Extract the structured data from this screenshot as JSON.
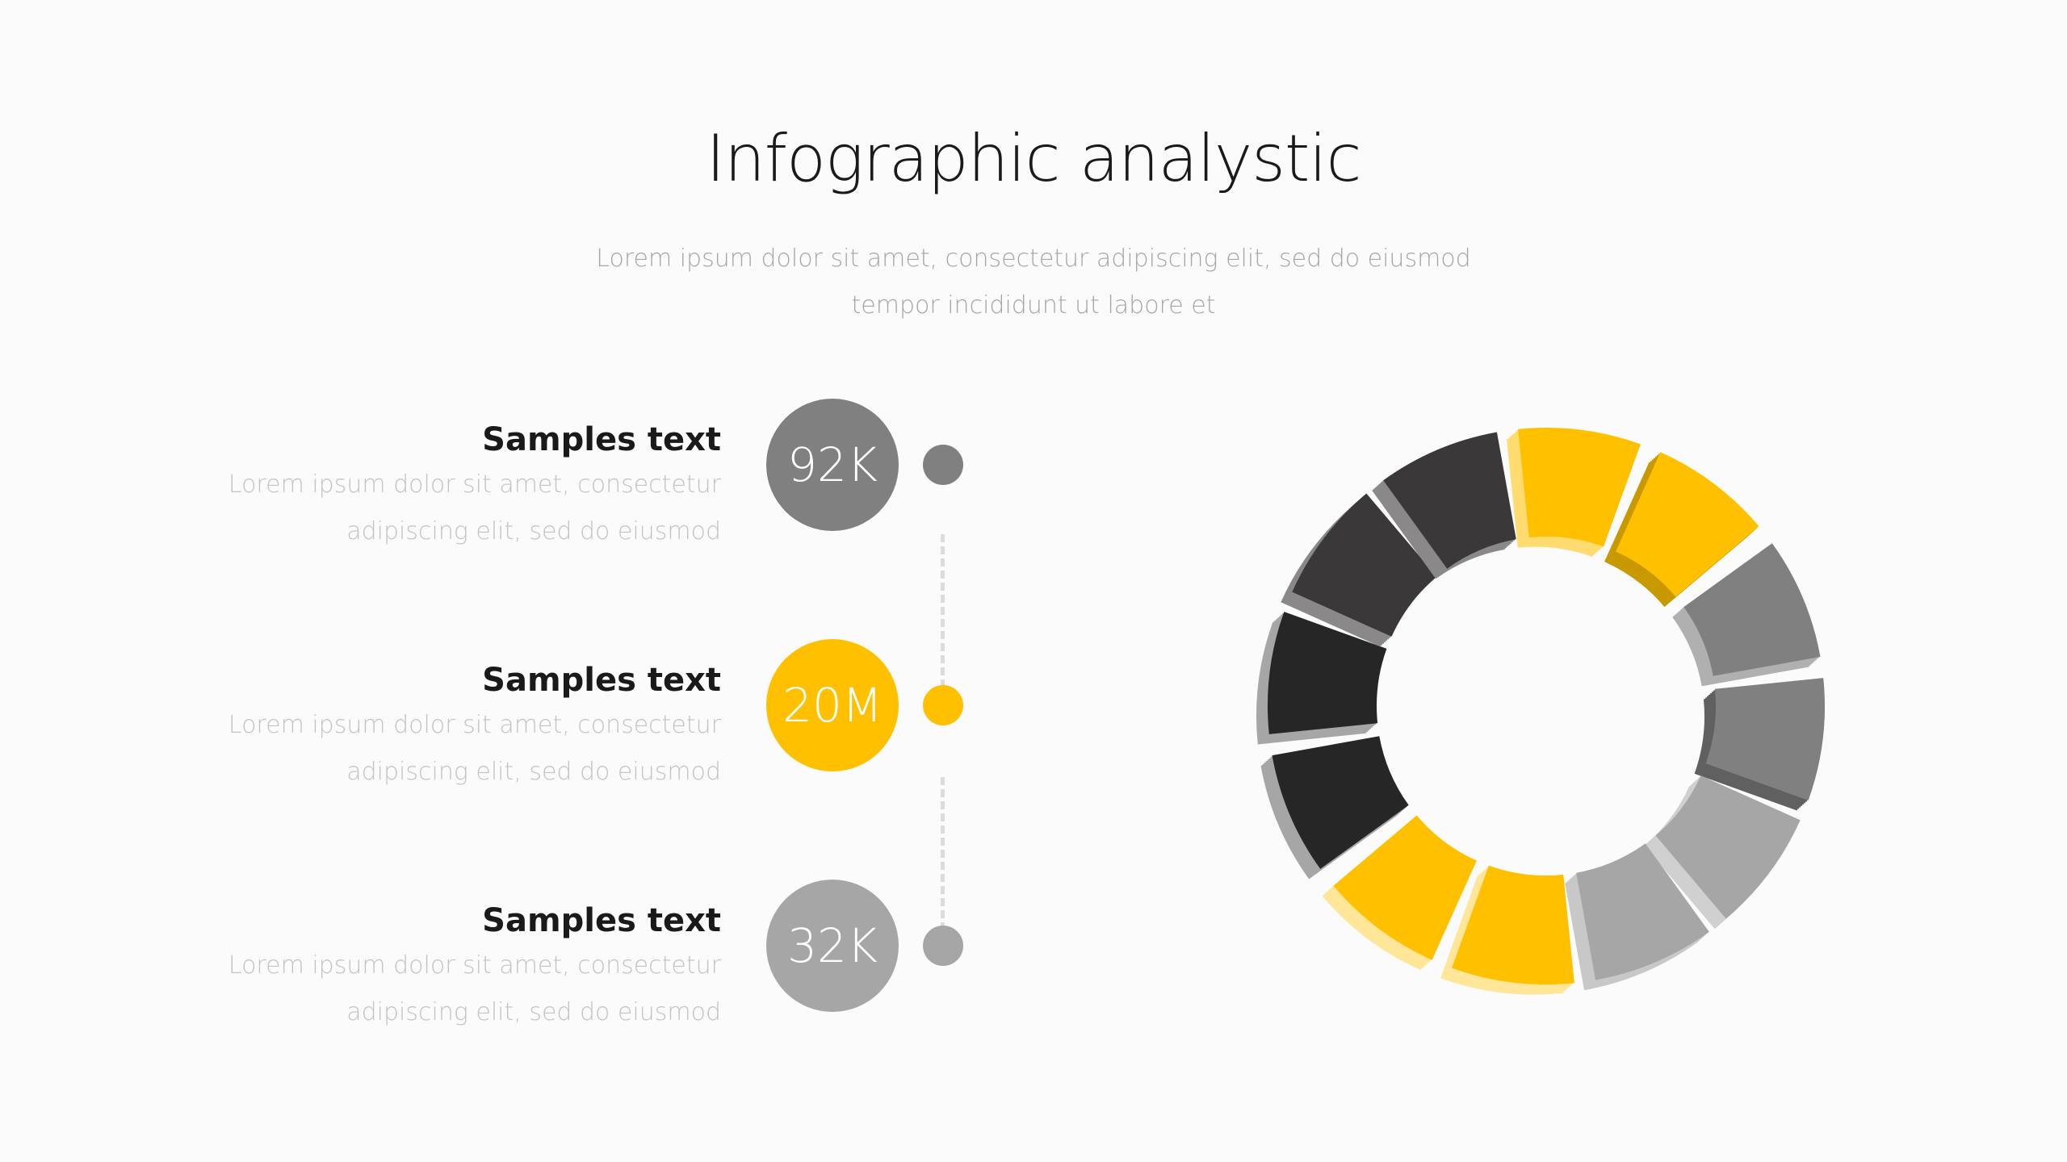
{
  "header": {
    "title": "Infographic analystic",
    "subtitle_line1": "Lorem ipsum dolor sit amet, consectetur adipiscing elit, sed do eiusmod",
    "subtitle_line2": "tempor incididunt ut labore et"
  },
  "items": [
    {
      "heading": "Samples text",
      "line1": "Lorem ipsum dolor sit amet, consectetur",
      "line2": "adipiscing elit, sed do eiusmod",
      "value": "92K",
      "color": "#808080"
    },
    {
      "heading": "Samples text",
      "line1": "Lorem ipsum dolor sit amet, consectetur",
      "line2": "adipiscing elit, sed do eiusmod",
      "value": "20M",
      "color": "#ffc000"
    },
    {
      "heading": "Samples text",
      "line1": "Lorem ipsum dolor sit amet, consectetur",
      "line2": "adipiscing elit, sed do eiusmod",
      "value": "32K",
      "color": "#a6a6a6"
    }
  ],
  "donut": {
    "segment_colors": [
      "#ffc000",
      "#ffc000",
      "#808080",
      "#808080",
      "#a6a6a6",
      "#a6a6a6",
      "#ffc000",
      "#ffc000",
      "#262626",
      "#262626",
      "#3a3839",
      "#3a3839"
    ],
    "side_colors": [
      "#ffdb70",
      "#c89900",
      "#b0b0b0",
      "#606060",
      "#d0d0d0",
      "#c8c8c8",
      "#ffe699",
      "#ffe699",
      "#a6a6a6",
      "#a6a6a6",
      "#8a8888",
      "#8a8888"
    ]
  }
}
